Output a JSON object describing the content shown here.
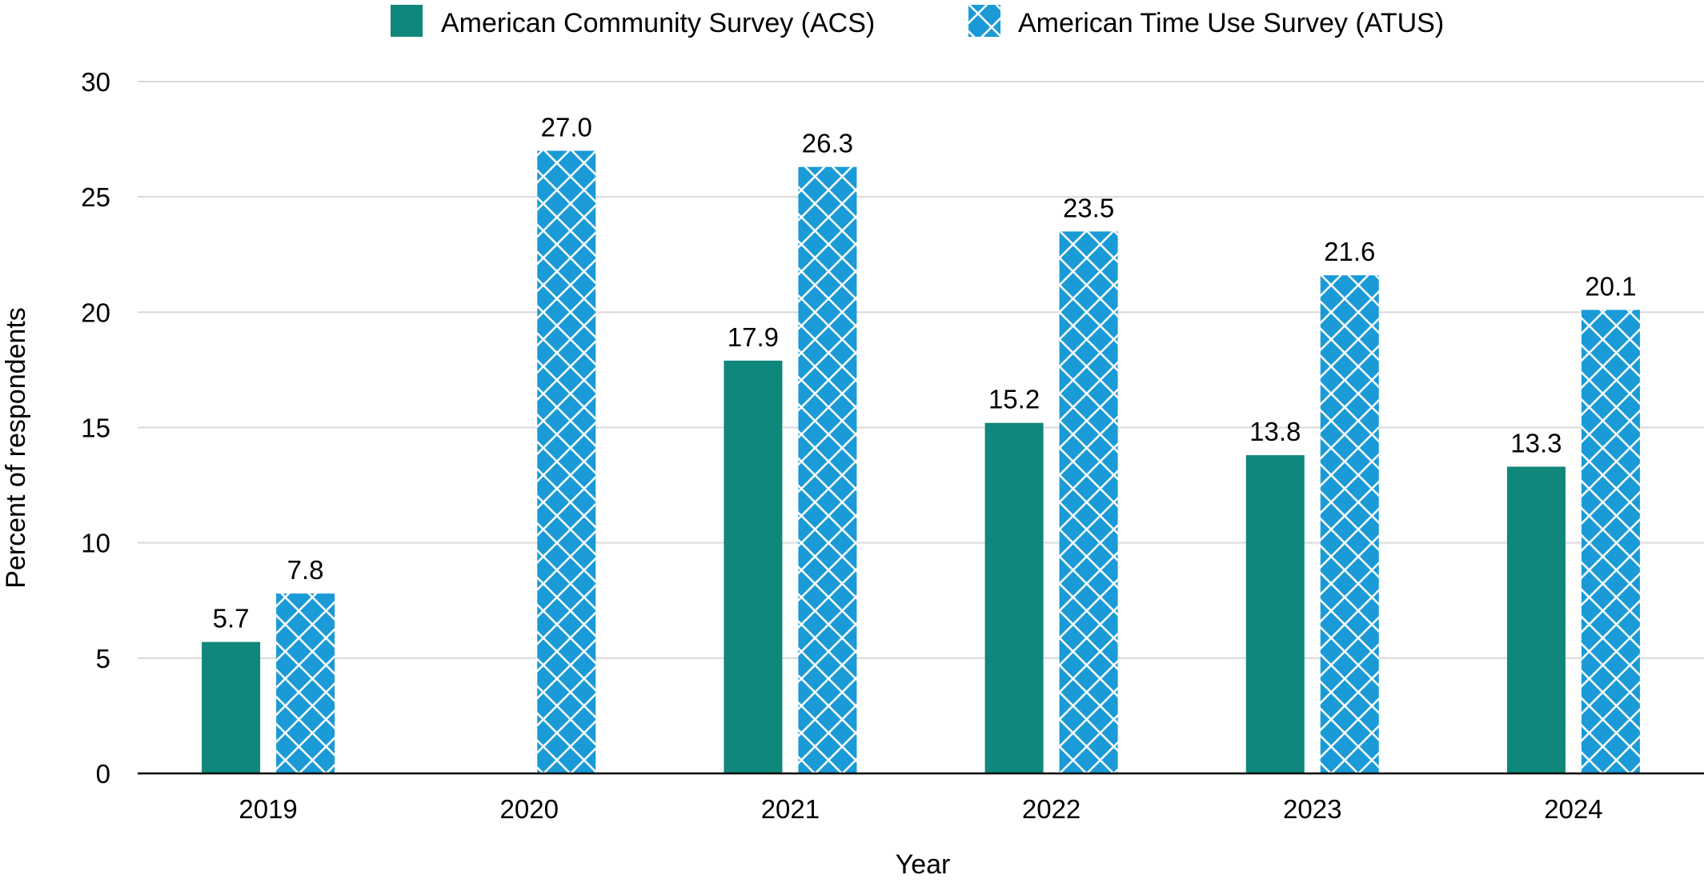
{
  "chart_data": {
    "type": "bar",
    "categories": [
      "2019",
      "2020",
      "2021",
      "2022",
      "2023",
      "2024"
    ],
    "series": [
      {
        "name": "American Community Survey (ACS)",
        "values": [
          5.7,
          null,
          17.9,
          15.2,
          13.8,
          13.3
        ],
        "value_labels": [
          "5.7",
          "",
          "17.9",
          "15.2",
          "13.8",
          "13.3"
        ],
        "color": "#0F877B",
        "pattern": "solid"
      },
      {
        "name": "American Time Use Survey (ATUS)",
        "values": [
          7.8,
          27.0,
          26.3,
          23.5,
          21.6,
          20.1
        ],
        "value_labels": [
          "7.8",
          "27.0",
          "26.3",
          "23.5",
          "21.6",
          "20.1"
        ],
        "color": "#1A9AD6",
        "pattern": "crosshatch"
      }
    ],
    "title": "",
    "xlabel": "Year",
    "ylabel": "Percent of respondents",
    "ylim": [
      0,
      30
    ],
    "yticks": [
      0,
      5,
      10,
      15,
      20,
      25,
      30
    ],
    "grid": true,
    "legend_position": "top"
  }
}
